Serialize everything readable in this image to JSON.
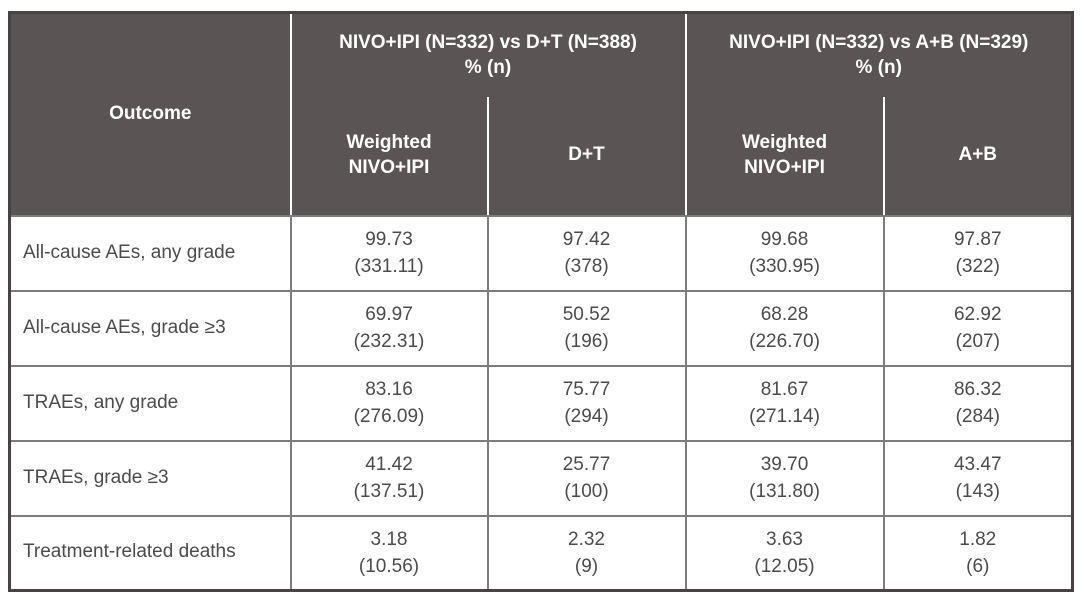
{
  "table": {
    "header": {
      "outcome_label": "Outcome",
      "groups": [
        {
          "title": "NIVO+IPI (N=332) vs D+T (N=388)",
          "subtitle": "% (n)",
          "columns": [
            "Weighted\nNIVO+IPI",
            "D+T"
          ]
        },
        {
          "title": "NIVO+IPI (N=332) vs A+B (N=329)",
          "subtitle": "% (n)",
          "columns": [
            "Weighted\nNIVO+IPI",
            "A+B"
          ]
        }
      ]
    },
    "rows": [
      {
        "outcome": "All-cause AEs, any grade",
        "values": [
          {
            "pct": "99.73",
            "n": "(331.11)"
          },
          {
            "pct": "97.42",
            "n": "(378)"
          },
          {
            "pct": "99.68",
            "n": "(330.95)"
          },
          {
            "pct": "97.87",
            "n": "(322)"
          }
        ]
      },
      {
        "outcome": "All-cause AEs, grade ≥3",
        "values": [
          {
            "pct": "69.97",
            "n": "(232.31)"
          },
          {
            "pct": "50.52",
            "n": "(196)"
          },
          {
            "pct": "68.28",
            "n": "(226.70)"
          },
          {
            "pct": "62.92",
            "n": "(207)"
          }
        ]
      },
      {
        "outcome": "TRAEs, any grade",
        "values": [
          {
            "pct": "83.16",
            "n": "(276.09)"
          },
          {
            "pct": "75.77",
            "n": "(294)"
          },
          {
            "pct": "81.67",
            "n": "(271.14)"
          },
          {
            "pct": "86.32",
            "n": "(284)"
          }
        ]
      },
      {
        "outcome": "TRAEs, grade ≥3",
        "values": [
          {
            "pct": "41.42",
            "n": "(137.51)"
          },
          {
            "pct": "25.77",
            "n": "(100)"
          },
          {
            "pct": "39.70",
            "n": "(131.80)"
          },
          {
            "pct": "43.47",
            "n": "(143)"
          }
        ]
      },
      {
        "outcome": "Treatment-related deaths",
        "values": [
          {
            "pct": "3.18",
            "n": "(10.56)"
          },
          {
            "pct": "2.32",
            "n": "(9)"
          },
          {
            "pct": "3.63",
            "n": "(12.05)"
          },
          {
            "pct": "1.82",
            "n": "(6)"
          }
        ]
      }
    ],
    "colors": {
      "header_bg": "#5a5454",
      "header_text": "#ffffff",
      "body_text": "#4b4b4b",
      "body_border": "#7c7c7c",
      "outer_border": "#484242"
    }
  }
}
